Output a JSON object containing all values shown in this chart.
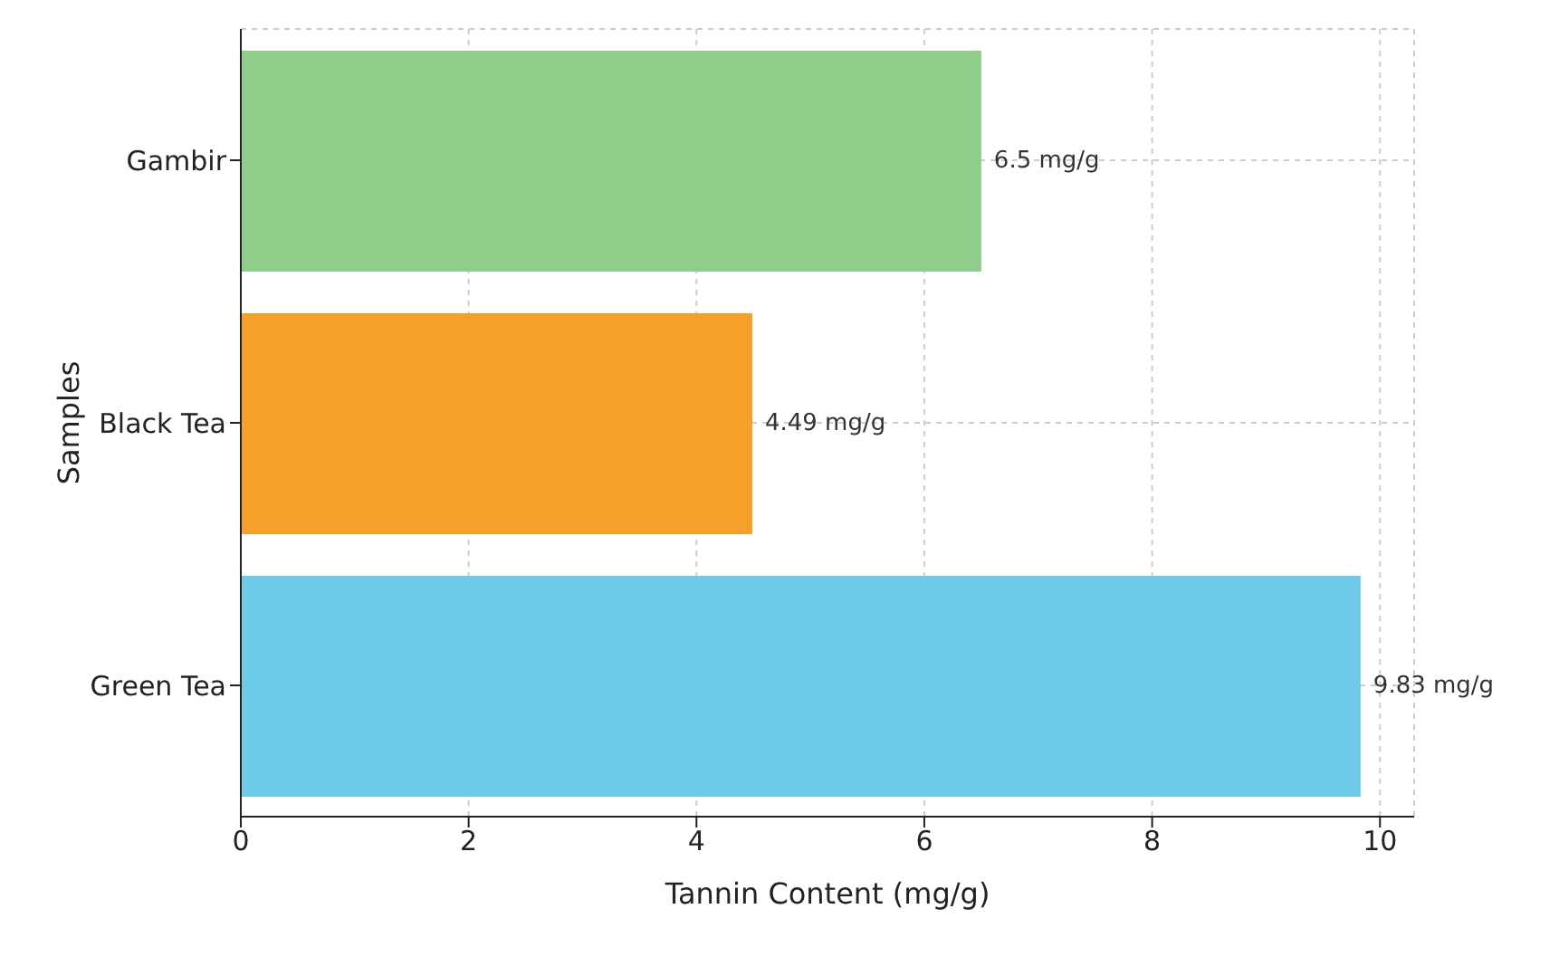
{
  "chart_data": {
    "type": "bar",
    "orientation": "horizontal",
    "xlabel": "Tannin Content (mg/g)",
    "ylabel": "Samples",
    "categories": [
      "Gambir",
      "Black Tea",
      "Green Tea"
    ],
    "values": [
      6.5,
      4.49,
      9.83
    ],
    "colors": [
      "#90cc8a",
      "#f5a02a",
      "#6ecbe8"
    ],
    "value_labels": [
      "6.5 mg/g",
      "4.49 mg/g",
      "9.83 mg/g"
    ],
    "xlim": [
      0,
      10.3
    ],
    "xticks": [
      0,
      2,
      4,
      6,
      8,
      10
    ],
    "grid": true,
    "legend": false
  }
}
